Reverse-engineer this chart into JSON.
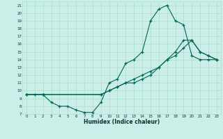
{
  "xlabel": "Humidex (Indice chaleur)",
  "bg_color": "#cceee8",
  "grid_color": "#aaddcc",
  "line_color": "#006655",
  "xlim": [
    -0.5,
    23.5
  ],
  "ylim": [
    7,
    21.5
  ],
  "xticks": [
    0,
    1,
    2,
    3,
    4,
    5,
    6,
    7,
    8,
    9,
    10,
    11,
    12,
    13,
    14,
    15,
    16,
    17,
    18,
    19,
    20,
    21,
    22,
    23
  ],
  "yticks": [
    7,
    8,
    9,
    10,
    11,
    12,
    13,
    14,
    15,
    16,
    17,
    18,
    19,
    20,
    21
  ],
  "line1_x": [
    0,
    1,
    2,
    3,
    4,
    5,
    6,
    7,
    8,
    9,
    10,
    11,
    12,
    13,
    14,
    15,
    16,
    17,
    18,
    19,
    20,
    21,
    22,
    23
  ],
  "line1_y": [
    9.5,
    9.5,
    9.5,
    8.5,
    8.0,
    8.0,
    7.5,
    7.2,
    7.2,
    8.5,
    11.0,
    11.5,
    13.5,
    14.0,
    15.0,
    19.0,
    20.5,
    21.0,
    19.0,
    18.5,
    14.5,
    14.0,
    14.0,
    14.0
  ],
  "line2_x": [
    0,
    2,
    9,
    10,
    11,
    12,
    13,
    14,
    15,
    16,
    17,
    18,
    19,
    20,
    21,
    22,
    23
  ],
  "line2_y": [
    9.5,
    9.5,
    9.5,
    10.0,
    10.5,
    11.0,
    11.5,
    12.0,
    12.5,
    13.0,
    14.0,
    14.5,
    15.5,
    16.5,
    15.0,
    14.5,
    14.0
  ],
  "line3_x": [
    0,
    2,
    9,
    10,
    11,
    12,
    13,
    14,
    15,
    16,
    17,
    18,
    19,
    20,
    21,
    22,
    23
  ],
  "line3_y": [
    9.5,
    9.5,
    9.5,
    10.0,
    10.5,
    11.0,
    11.0,
    11.5,
    12.0,
    13.0,
    14.0,
    15.0,
    16.5,
    16.5,
    15.0,
    14.5,
    14.0
  ]
}
